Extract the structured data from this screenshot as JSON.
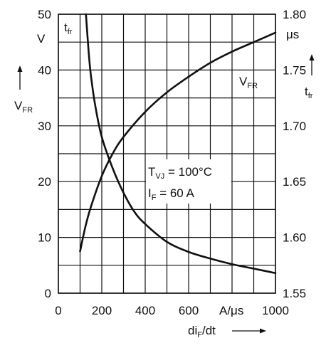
{
  "chart_data": {
    "type": "line",
    "title": "",
    "xlabel": "di/dt",
    "xunit": "A/μs",
    "xlim": [
      0,
      1000
    ],
    "xticks": [
      0,
      200,
      400,
      600,
      1000
    ],
    "x_grid": [
      0,
      100,
      200,
      300,
      400,
      500,
      600,
      700,
      800,
      900,
      1000
    ],
    "left_axis": {
      "label": "V",
      "unit": "V",
      "ylim": [
        0,
        50
      ],
      "ticks": [
        0,
        10,
        20,
        30,
        40,
        50
      ],
      "grid": [
        0,
        5,
        10,
        15,
        20,
        25,
        30,
        35,
        40,
        45,
        50
      ]
    },
    "right_axis": {
      "label": "t",
      "unit": "μs",
      "ylim": [
        1.55,
        1.8
      ],
      "ticks": [
        "1.55",
        "1.60",
        "1.65",
        "1.70",
        "1.75",
        "1.80"
      ]
    },
    "annotation": {
      "tvj": "T",
      "tvj_sub": "VJ",
      "tvj_val": " = 100°C",
      "if": "I",
      "if_sub": "F",
      "if_val": " = 60 A"
    },
    "series": [
      {
        "name": "V",
        "name_sub": "FR",
        "axis": "left",
        "x": [
          100,
          125,
          150,
          200,
          250,
          300,
          400,
          500,
          600,
          700,
          800,
          900,
          1000
        ],
        "y": [
          7.5,
          12,
          15.5,
          21,
          25,
          28,
          32.5,
          36,
          38.8,
          41.3,
          43.3,
          45,
          46.7
        ]
      },
      {
        "name": "t",
        "name_sub": "fr",
        "axis": "right",
        "x": [
          127,
          140,
          150,
          170,
          200,
          250,
          300,
          350,
          400,
          500,
          600,
          700,
          800,
          900,
          1000
        ],
        "y": [
          1.8,
          1.765,
          1.745,
          1.718,
          1.69,
          1.662,
          1.64,
          1.623,
          1.612,
          1.596,
          1.587,
          1.581,
          1.576,
          1.572,
          1.568
        ]
      }
    ],
    "grid": true
  }
}
